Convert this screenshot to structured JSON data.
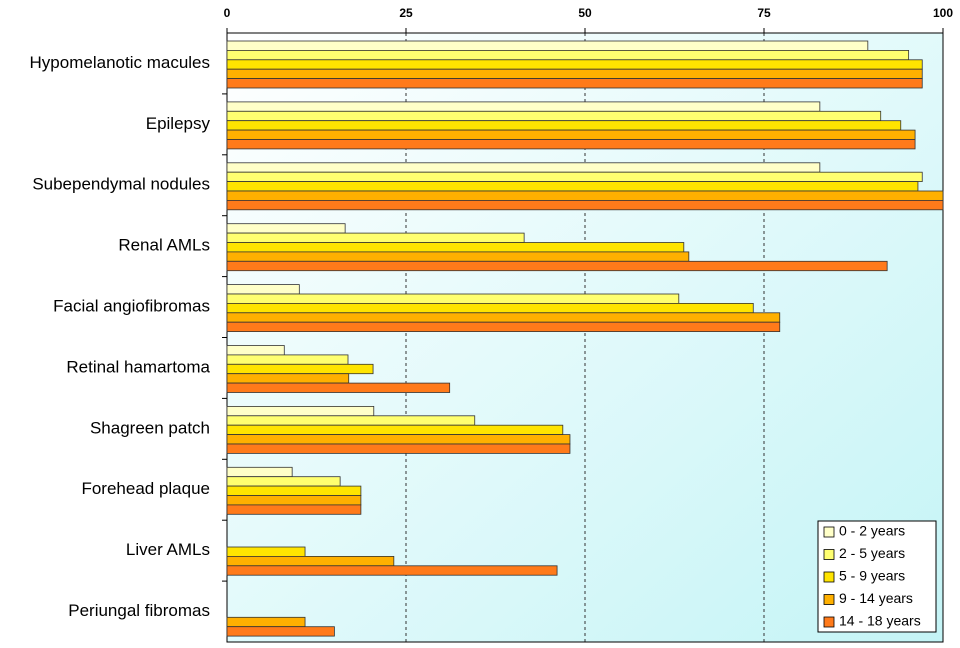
{
  "chart_data": {
    "type": "bar",
    "orientation": "horizontal",
    "categories": [
      "Hypomelanotic macules",
      "Epilepsy",
      "Subependymal nodules",
      "Renal AMLs",
      "Facial angiofibromas",
      "Retinal hamartoma",
      "Shagreen patch",
      "Forehead plaque",
      "Liver AMLs",
      "Periungal fibromas"
    ],
    "series": [
      {
        "name": "0 - 2 years",
        "color": "#ffffc8",
        "values": [
          89.5,
          82.8,
          82.8,
          16.5,
          10.1,
          8,
          20.5,
          9.1,
          null,
          null
        ]
      },
      {
        "name": "2 - 5 years",
        "color": "#ffff70",
        "values": [
          95.2,
          91.3,
          97.1,
          41.5,
          63.1,
          16.9,
          34.6,
          15.8,
          null,
          null
        ]
      },
      {
        "name": "5 - 9 years",
        "color": "#ffe400",
        "values": [
          97.1,
          94.1,
          96.5,
          63.8,
          73.5,
          20.4,
          46.9,
          18.7,
          10.9,
          null
        ]
      },
      {
        "name": "9 - 14 years",
        "color": "#ffb000",
        "values": [
          97.1,
          96.1,
          100,
          64.5,
          77.2,
          17,
          47.9,
          18.7,
          23.3,
          10.9
        ]
      },
      {
        "name": "14 - 18 years",
        "color": "#ff7a1a",
        "values": [
          97.1,
          96.1,
          100,
          92.2,
          77.2,
          31.1,
          47.9,
          18.7,
          46.1,
          15
        ]
      }
    ],
    "xlim": [
      0,
      100
    ],
    "xticks": [
      0,
      25,
      50,
      75,
      100
    ],
    "grid": true,
    "legend": "lower right"
  }
}
